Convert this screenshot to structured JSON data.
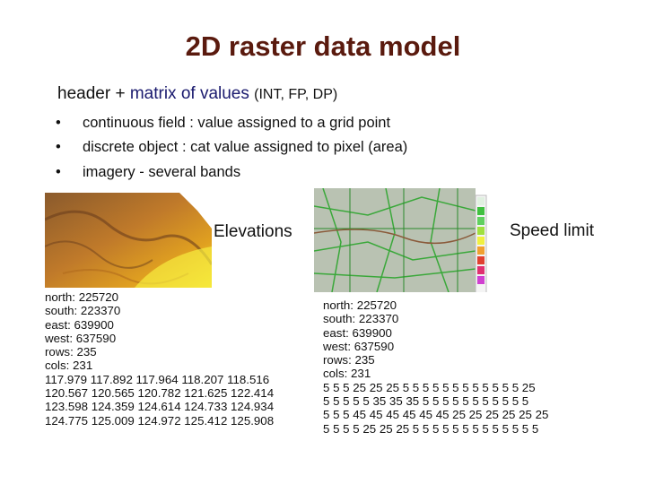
{
  "title": "2D raster data model",
  "subtitle": {
    "lead": "header + ",
    "emphasis": "matrix of values",
    "note": "(INT, FP, DP)"
  },
  "bullets": [
    "continuous field : value assigned to a grid point",
    "discrete object : cat value assigned to pixel (area)",
    "imagery - several bands"
  ],
  "panels": [
    {
      "label": "Elevations",
      "lines": [
        "north: 225720",
        "south: 223370",
        "east: 639900",
        "west: 637590",
        "rows: 235",
        "cols: 231",
        "117.979 117.892 117.964 118.207 118.516",
        "120.567 120.565 120.782 121.625 122.414",
        "123.598 124.359 124.614 124.733 124.934",
        "124.775 125.009 124.972 125.412 125.908"
      ]
    },
    {
      "label": "Speed limit",
      "lines": [
        "north: 225720",
        "south: 223370",
        "east: 639900",
        "west: 637590",
        "rows: 235",
        "cols: 231",
        "5 5 5 25 25 25 5 5 5 5 5 5 5 5 5 5 5 5 25",
        "5 5 5 5 5 35 35 35 5 5 5 5 5 5 5 5 5 5 5",
        "5 5 5 45 45 45 45 45 45 25 25 25 25 25 25",
        "5 5 5 5 25 25 25 5 5 5 5 5 5 5 5 5 5 5 5 5"
      ]
    }
  ]
}
